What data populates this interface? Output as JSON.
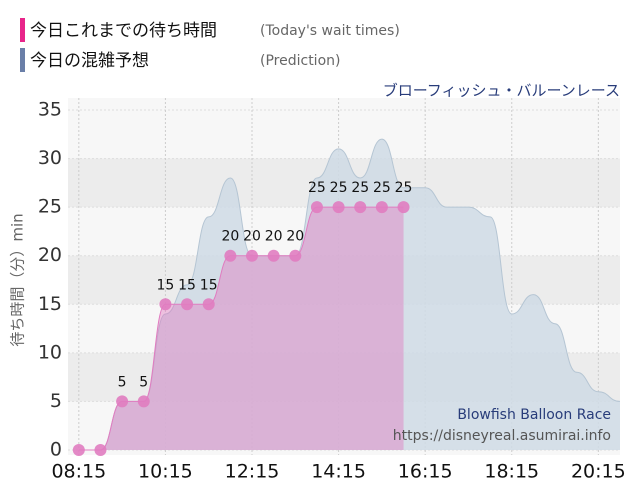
{
  "chart_data": {
    "type": "area",
    "legend": [
      {
        "name": "今日これまでの待ち時間",
        "note": "(Today's wait times)",
        "color": "#e8258a"
      },
      {
        "name": "今日の混雑予想",
        "note": "(Prediction)",
        "color": "#6a7fa8"
      }
    ],
    "subtitle": "ブローフィッシュ・バルーンレース",
    "ylabel": "待ち時間（分）min",
    "watermark": [
      "Blowfish Balloon Race",
      "https://disneyreal.asumirai.info"
    ],
    "series": [
      {
        "name": "今日の混雑予想",
        "color": "#cfdbe5",
        "x": [
          "08:45",
          "09:15",
          "09:45",
          "10:15",
          "10:45",
          "11:15",
          "11:45",
          "12:15",
          "12:45",
          "13:15",
          "13:45",
          "14:15",
          "14:45",
          "15:15",
          "15:45",
          "16:15",
          "16:45",
          "17:15",
          "17:45",
          "18:15",
          "18:45",
          "19:15",
          "19:45",
          "20:15",
          "20:45"
        ],
        "values": [
          0,
          5,
          5,
          14,
          17,
          24,
          28,
          20,
          20,
          20,
          28,
          31,
          28,
          32,
          27,
          27,
          25,
          25,
          24,
          14,
          16,
          13,
          8,
          6,
          5
        ]
      },
      {
        "name": "今日これまでの待ち時間",
        "color": "#e07cc0",
        "x": [
          "08:15",
          "08:45",
          "09:15",
          "09:45",
          "10:15",
          "10:45",
          "11:15",
          "11:45",
          "12:15",
          "12:45",
          "13:15",
          "13:45",
          "14:15",
          "14:45",
          "15:15",
          "15:45"
        ],
        "values": [
          0,
          0,
          5,
          5,
          15,
          15,
          15,
          20,
          20,
          20,
          20,
          25,
          25,
          25,
          25,
          25
        ],
        "value_labels": [
          null,
          null,
          "5",
          "5",
          "15",
          "15",
          "15",
          "20",
          "20",
          "20",
          "20",
          "25",
          "25",
          "25",
          "25",
          "25"
        ]
      }
    ],
    "xlim": [
      "08:00",
      "20:45"
    ],
    "xticks": [
      "08:15",
      "10:15",
      "12:15",
      "14:15",
      "16:15",
      "18:15",
      "20:15"
    ],
    "ylim": [
      0,
      35
    ],
    "yticks": [
      0,
      5,
      10,
      15,
      20,
      25,
      30,
      35
    ],
    "grid": true
  }
}
